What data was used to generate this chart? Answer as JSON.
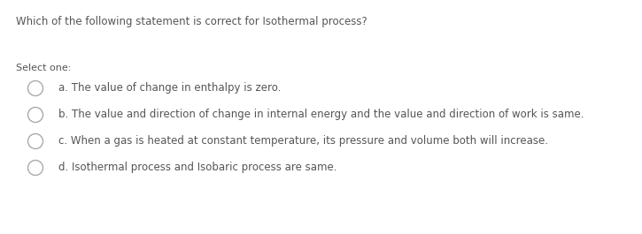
{
  "background_color": "#ffffff",
  "question": "Which of the following statement is correct for Isothermal process?",
  "question_fontsize": 8.5,
  "question_color": "#555555",
  "select_one_label": "Select one:",
  "select_one_fontsize": 8.0,
  "select_one_color": "#555555",
  "options": [
    "a. The value of change in enthalpy is zero.",
    "b. The value and direction of change in internal energy and the value and direction of work is same.",
    "c. When a gas is heated at constant temperature, its pressure and volume both will increase.",
    "d. Isothermal process and Isobaric process are same."
  ],
  "option_fontsize": 8.5,
  "option_color": "#555555",
  "circle_color": "#aaaaaa",
  "circle_lw": 1.0,
  "fig_width": 7.25,
  "fig_height": 2.65,
  "dpi": 100
}
